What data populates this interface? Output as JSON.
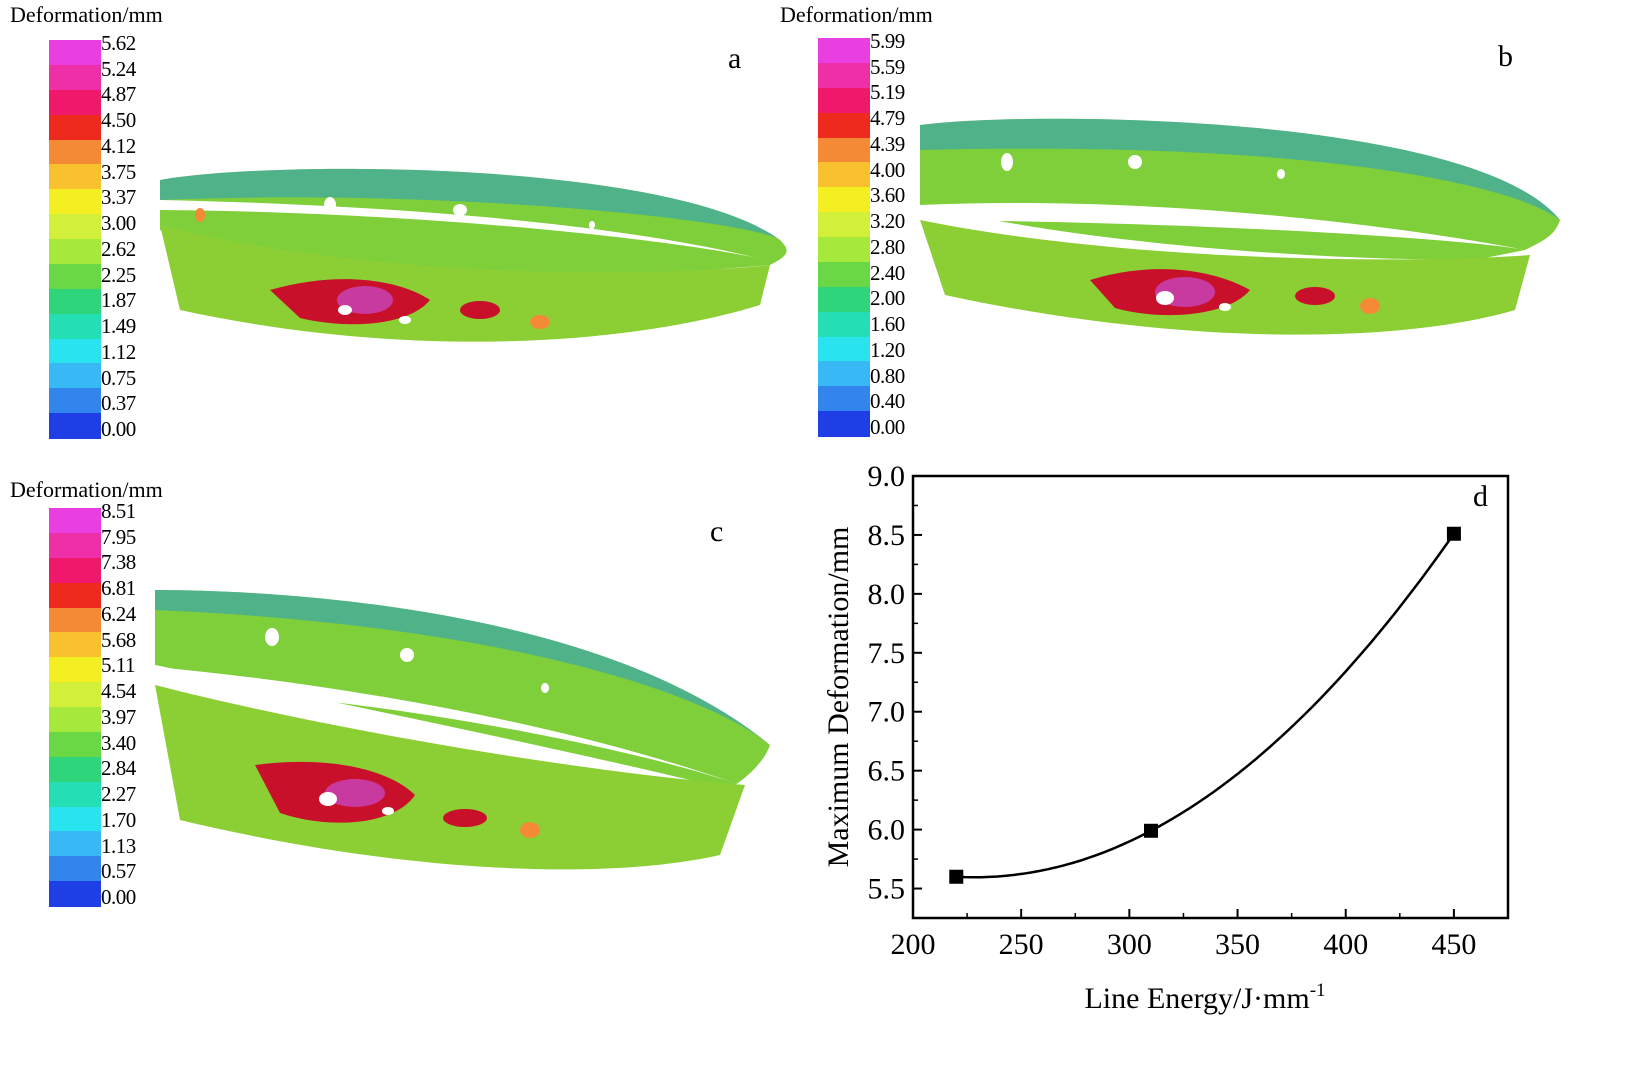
{
  "panels": [
    {
      "id": "a",
      "letter": "a",
      "legend_title": "Deformation/mm",
      "legend_labels": [
        "5.62",
        "5.24",
        "4.87",
        "4.50",
        "4.12",
        "3.75",
        "3.37",
        "3.00",
        "2.62",
        "2.25",
        "1.87",
        "1.49",
        "1.12",
        "0.75",
        "0.37",
        "0.00"
      ]
    },
    {
      "id": "b",
      "letter": "b",
      "legend_title": "Deformation/mm",
      "legend_labels": [
        "5.99",
        "5.59",
        "5.19",
        "4.79",
        "4.39",
        "4.00",
        "3.60",
        "3.20",
        "2.80",
        "2.40",
        "2.00",
        "1.60",
        "1.20",
        "0.80",
        "0.40",
        "0.00"
      ]
    },
    {
      "id": "c",
      "letter": "c",
      "legend_title": "Deformation/mm",
      "legend_labels": [
        "8.51",
        "7.95",
        "7.38",
        "6.81",
        "6.24",
        "5.68",
        "5.11",
        "4.54",
        "3.97",
        "3.40",
        "2.84",
        "2.27",
        "1.70",
        "1.13",
        "0.57",
        "0.00"
      ]
    }
  ],
  "colors": {
    "legend_scale": [
      "#e93fe0",
      "#ee2fa8",
      "#f0186a",
      "#ee2a1e",
      "#f58a36",
      "#f9c12e",
      "#f4ef22",
      "#d2f03a",
      "#a6e83c",
      "#6ad844",
      "#2fd57a",
      "#25dfb4",
      "#29e4ee",
      "#38b8f4",
      "#3185ec",
      "#1f3fe6"
    ],
    "ring_green": "#7fcf3a",
    "ring_blue": "#2a9bc8",
    "hot": "#c8102a",
    "magenta": "#c83aa0"
  },
  "chart_data": {
    "type": "scatter",
    "panel_letter": "d",
    "x": [
      220,
      310,
      450
    ],
    "y": [
      5.6,
      5.99,
      8.51
    ],
    "fit_line": "smooth curve through points",
    "xlabel": "Line Energy/J·mm",
    "xlabel_superscript": "-1",
    "ylabel": "Maximum Deformation/mm",
    "xlim": [
      200,
      475
    ],
    "ylim": [
      5.25,
      9.0
    ],
    "xticks": [
      200,
      250,
      300,
      350,
      400,
      450
    ],
    "xtick_labels": [
      "200",
      "250",
      "300",
      "350",
      "400",
      "450"
    ],
    "yticks": [
      5.5,
      6.0,
      6.5,
      7.0,
      7.5,
      8.0,
      8.5,
      9.0
    ],
    "ytick_labels": [
      "5.5",
      "6.0",
      "6.5",
      "7.0",
      "7.5",
      "8.0",
      "8.5",
      "9.0"
    ],
    "marker": "square",
    "marker_color": "#000000",
    "grid": false
  }
}
